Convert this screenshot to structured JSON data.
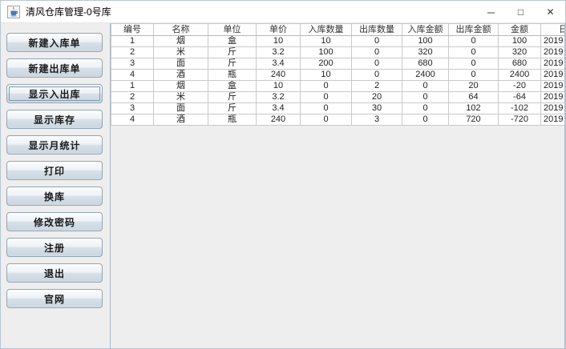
{
  "window": {
    "title": "清风仓库管理-0号库",
    "controls": {
      "minimize": "─",
      "maximize": "□",
      "close": "✕"
    }
  },
  "sidebar": {
    "buttons": [
      {
        "name": "new-inbound-order",
        "label": "新建入库单",
        "focused": false
      },
      {
        "name": "new-outbound-order",
        "label": "新建出库单",
        "focused": false
      },
      {
        "name": "show-in-out",
        "label": "显示入出库",
        "focused": true
      },
      {
        "name": "show-inventory",
        "label": "显示库存",
        "focused": false
      },
      {
        "name": "show-monthly-stats",
        "label": "显示月统计",
        "focused": false
      },
      {
        "name": "print",
        "label": "打印",
        "focused": false
      },
      {
        "name": "switch-warehouse",
        "label": "换库",
        "focused": false
      },
      {
        "name": "change-password",
        "label": "修改密码",
        "focused": false
      },
      {
        "name": "register",
        "label": "注册",
        "focused": false
      },
      {
        "name": "exit",
        "label": "退出",
        "focused": false
      },
      {
        "name": "official-site",
        "label": "官网",
        "focused": false
      }
    ]
  },
  "table": {
    "columns": [
      "编号",
      "名称",
      "单位",
      "单价",
      "入库数量",
      "出库数量",
      "入库金额",
      "出库金额",
      "金额",
      "日"
    ],
    "rows": [
      [
        "1",
        "烟",
        "盒",
        "10",
        "10",
        "0",
        "100",
        "0",
        "100",
        "2019"
      ],
      [
        "2",
        "米",
        "斤",
        "3.2",
        "100",
        "0",
        "320",
        "0",
        "320",
        "2019"
      ],
      [
        "3",
        "面",
        "斤",
        "3.4",
        "200",
        "0",
        "680",
        "0",
        "680",
        "2019"
      ],
      [
        "4",
        "酒",
        "瓶",
        "240",
        "10",
        "0",
        "2400",
        "0",
        "2400",
        "2019"
      ],
      [
        "1",
        "烟",
        "盒",
        "10",
        "0",
        "2",
        "0",
        "20",
        "-20",
        "2019"
      ],
      [
        "2",
        "米",
        "斤",
        "3.2",
        "0",
        "20",
        "0",
        "64",
        "-64",
        "2019"
      ],
      [
        "3",
        "面",
        "斤",
        "3.4",
        "0",
        "30",
        "0",
        "102",
        "-102",
        "2019"
      ],
      [
        "4",
        "酒",
        "瓶",
        "240",
        "0",
        "3",
        "0",
        "720",
        "-720",
        "2019"
      ]
    ]
  },
  "colors": {
    "window_background": "#eeeeee",
    "titlebar_background": "#ffffff",
    "pane_border": "#a9bac7",
    "grid_line": "#c9c9c9",
    "button_border": "#93a5b4",
    "button_gradient_top": "#fbfdfe",
    "button_gradient_bottom": "#ccd7e0",
    "focus_ring": "#7d97ad",
    "text": "#1a1a1a"
  }
}
